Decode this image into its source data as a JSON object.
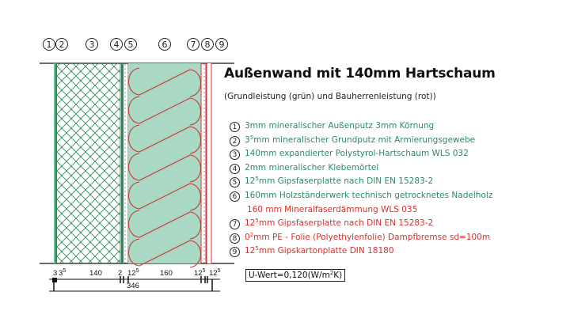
{
  "title": "Außenwand mit 140mm Hartschaum",
  "subtitle": "(Grundleistung (grün) und Bauherrenleistung (rot))",
  "layer_markers": [
    "1",
    "2",
    "3",
    "4",
    "5",
    "6",
    "7",
    "8",
    "9"
  ],
  "colors": {
    "green_text": "#2f8a5e",
    "red_text": "#d8312c",
    "insulation_fill": "#a9d8c4",
    "hatch": "#2a8a55"
  },
  "legend": [
    {
      "num": "1",
      "pre": "3",
      "sup": "",
      "text": "mm mineralischer Außenputz 3mm Körnung",
      "color": "green"
    },
    {
      "num": "2",
      "pre": "3",
      "sup": "5",
      "text": "mm mineralischer Grundputz mit Armierungsgewebe",
      "color": "green"
    },
    {
      "num": "3",
      "pre": "140",
      "sup": "",
      "text": "mm expandierter Polystyrol-Hartschaum WLS 032",
      "color": "green"
    },
    {
      "num": "4",
      "pre": "2",
      "sup": "",
      "text": "mm mineralischer Klebemörtel",
      "color": "green"
    },
    {
      "num": "5",
      "pre": "12",
      "sup": "5",
      "text": "mm Gipsfaserplatte nach DIN EN 15283-2",
      "color": "green"
    },
    {
      "num": "6",
      "pre": "160",
      "sup": "",
      "text": "mm Holzständerwerk technisch getrocknetes Nadelholz",
      "color": "green"
    },
    {
      "num": "",
      "pre": "160",
      "sup": "",
      "text": " mm Mineralfaserdämmung WLS 035",
      "color": "red"
    },
    {
      "num": "7",
      "pre": "12",
      "sup": "5",
      "text": "mm Gipsfaserplatte nach DIN EN 15283-2",
      "color": "red"
    },
    {
      "num": "8",
      "pre": "0",
      "sup": "2",
      "text": "mm PE - Folie (Polyethylenfolie) Dampfbremse sd=100m",
      "color": "red"
    },
    {
      "num": "9",
      "pre": "12",
      "sup": "5",
      "text": "mm Gipskartonplatte DIN 18180",
      "color": "red"
    }
  ],
  "dimensions": {
    "segments": [
      {
        "base": "3",
        "sup": ""
      },
      {
        "base": "3",
        "sup": "5"
      },
      {
        "base": "140",
        "sup": ""
      },
      {
        "base": "2",
        "sup": ""
      },
      {
        "base": "12",
        "sup": "5"
      },
      {
        "base": "160",
        "sup": ""
      },
      {
        "base": "12",
        "sup": "5"
      },
      {
        "base": "12",
        "sup": "5"
      }
    ],
    "total": "346"
  },
  "u_value": {
    "label": "U-Wert=0,120(W/m",
    "sup": "2",
    "unit_end": "K)"
  }
}
